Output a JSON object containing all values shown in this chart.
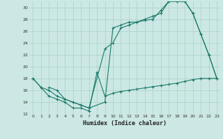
{
  "xlabel": "Humidex (Indice chaleur)",
  "bg_color": "#cce8e4",
  "grid_color": "#aacfc8",
  "line_color": "#1a7a6a",
  "xlim": [
    -0.5,
    23.5
  ],
  "ylim": [
    12,
    31
  ],
  "xticks": [
    0,
    1,
    2,
    3,
    4,
    5,
    6,
    7,
    8,
    9,
    10,
    11,
    12,
    13,
    14,
    15,
    16,
    17,
    18,
    19,
    20,
    21,
    22,
    23
  ],
  "yticks": [
    12,
    14,
    16,
    18,
    20,
    22,
    24,
    26,
    28,
    30
  ],
  "line1_x": [
    0,
    1,
    2,
    3,
    4,
    5,
    6,
    7,
    8,
    9,
    10,
    11,
    12,
    13,
    14,
    15,
    16,
    17,
    18,
    19,
    20,
    21,
    22,
    23
  ],
  "line1_y": [
    18,
    16.5,
    15,
    14.5,
    14,
    13,
    13,
    12.5,
    19,
    15,
    15.5,
    15.8,
    16,
    16.2,
    16.4,
    16.6,
    16.8,
    17,
    17.2,
    17.5,
    17.8,
    18,
    18,
    18
  ],
  "line2_x": [
    0,
    1,
    2,
    3,
    4,
    5,
    6,
    7,
    9,
    10,
    11,
    12,
    13,
    14,
    15,
    16,
    17,
    18,
    19,
    20,
    21,
    22,
    23
  ],
  "line2_y": [
    18,
    16.5,
    16,
    15,
    14.5,
    14,
    13.5,
    13,
    14,
    26.5,
    27,
    27.5,
    27.5,
    28,
    28.5,
    29,
    31,
    31,
    31,
    29,
    25.5,
    22,
    18
  ],
  "line3_x": [
    2,
    3,
    4,
    5,
    6,
    7,
    9,
    10,
    11,
    12,
    13,
    14,
    15,
    16,
    17,
    18,
    19,
    20,
    21,
    22,
    23
  ],
  "line3_y": [
    16.5,
    16,
    14.5,
    14,
    13.5,
    13,
    23,
    24,
    26.5,
    27,
    27.5,
    27.8,
    28,
    29.5,
    31,
    31,
    31,
    29,
    25.5,
    22,
    18
  ]
}
